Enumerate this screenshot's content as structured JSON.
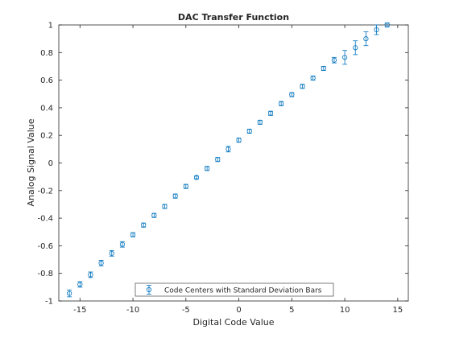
{
  "chart_data": {
    "type": "scatter",
    "title": "DAC Transfer Function",
    "xlabel": "Digital Code Value",
    "ylabel": "Analog Signal Value",
    "xlim": [
      -17,
      16
    ],
    "ylim": [
      -1,
      1
    ],
    "xticks": [
      -15,
      -10,
      -5,
      0,
      5,
      10,
      15
    ],
    "xtick_labels": [
      "-15",
      "-10",
      "-5",
      "0",
      "5",
      "10",
      "15"
    ],
    "yticks": [
      -1,
      -0.8,
      -0.6,
      -0.4,
      -0.2,
      0,
      0.2,
      0.4,
      0.6,
      0.8,
      1
    ],
    "ytick_labels": [
      "-1",
      "-0.8",
      "-0.6",
      "-0.4",
      "-0.2",
      "0",
      "0.2",
      "0.4",
      "0.6",
      "0.8",
      "1"
    ],
    "grid": false,
    "legend_position": "bottom-center",
    "color": "#0072BD",
    "series": [
      {
        "name": "Code Centers with Standard Deviation Bars",
        "x": [
          -16,
          -15,
          -14,
          -13,
          -12,
          -11,
          -10,
          -9,
          -8,
          -7,
          -6,
          -5,
          -4,
          -3,
          -2,
          -1,
          0,
          1,
          2,
          3,
          4,
          5,
          6,
          7,
          8,
          9,
          10,
          11,
          12,
          13,
          14
        ],
        "y": [
          -0.945,
          -0.88,
          -0.81,
          -0.725,
          -0.655,
          -0.59,
          -0.52,
          -0.45,
          -0.38,
          -0.315,
          -0.24,
          -0.17,
          -0.105,
          -0.04,
          0.025,
          0.1,
          0.165,
          0.23,
          0.295,
          0.36,
          0.43,
          0.495,
          0.555,
          0.615,
          0.685,
          0.745,
          0.765,
          0.835,
          0.9,
          0.965,
          1.0
        ],
        "err": [
          0.025,
          0.02,
          0.02,
          0.02,
          0.02,
          0.02,
          0.015,
          0.015,
          0.015,
          0.015,
          0.015,
          0.015,
          0.01,
          0.015,
          0.015,
          0.02,
          0.015,
          0.015,
          0.015,
          0.015,
          0.015,
          0.015,
          0.015,
          0.015,
          0.015,
          0.02,
          0.05,
          0.05,
          0.05,
          0.035,
          0.015
        ]
      }
    ]
  }
}
